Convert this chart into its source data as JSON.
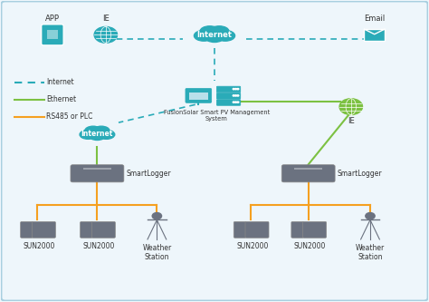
{
  "bg_color": "#eef6fb",
  "border_color": "#a8cfe0",
  "teal": "#2aabb8",
  "green": "#7cc142",
  "orange": "#f5a020",
  "gray_device": "#6b7280",
  "text_color": "#333333",
  "legend_items": [
    {
      "label": "Internet",
      "color": "#2aabb8",
      "style": "dashed"
    },
    {
      "label": "Ethernet",
      "color": "#7cc142",
      "style": "solid"
    },
    {
      "label": "RS485 or PLC",
      "color": "#f5a020",
      "style": "solid"
    }
  ]
}
